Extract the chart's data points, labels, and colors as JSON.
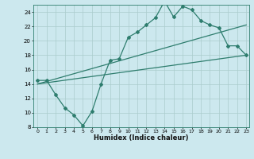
{
  "xlabel": "Humidex (Indice chaleur)",
  "bg_color": "#cce8ee",
  "grid_color": "#aacccc",
  "line_color": "#2e7d6e",
  "xmin": 0,
  "xmax": 23,
  "ymin": 8,
  "ymax": 25,
  "yticks": [
    8,
    10,
    12,
    14,
    16,
    18,
    20,
    22,
    24
  ],
  "xticks": [
    0,
    1,
    2,
    3,
    4,
    5,
    6,
    7,
    8,
    9,
    10,
    11,
    12,
    13,
    14,
    15,
    16,
    17,
    18,
    19,
    20,
    21,
    22,
    23
  ],
  "line1_x": [
    0,
    1,
    2,
    3,
    4,
    5,
    6,
    7,
    8,
    9,
    10,
    11,
    12,
    13,
    14,
    15,
    16,
    17,
    18,
    19,
    20,
    21,
    22,
    23
  ],
  "line1_y": [
    14.5,
    14.5,
    12.5,
    10.7,
    9.7,
    8.2,
    10.2,
    14.0,
    17.3,
    17.5,
    20.5,
    21.2,
    22.2,
    23.2,
    25.5,
    23.3,
    24.8,
    24.3,
    22.8,
    22.2,
    21.8,
    19.3,
    19.3,
    18.0
  ],
  "line2_x": [
    0,
    23
  ],
  "line2_y": [
    14.0,
    22.2
  ],
  "line3_x": [
    0,
    23
  ],
  "line3_y": [
    14.0,
    18.0
  ],
  "marker_style": "D",
  "marker_size": 2.0,
  "line_width": 0.9
}
